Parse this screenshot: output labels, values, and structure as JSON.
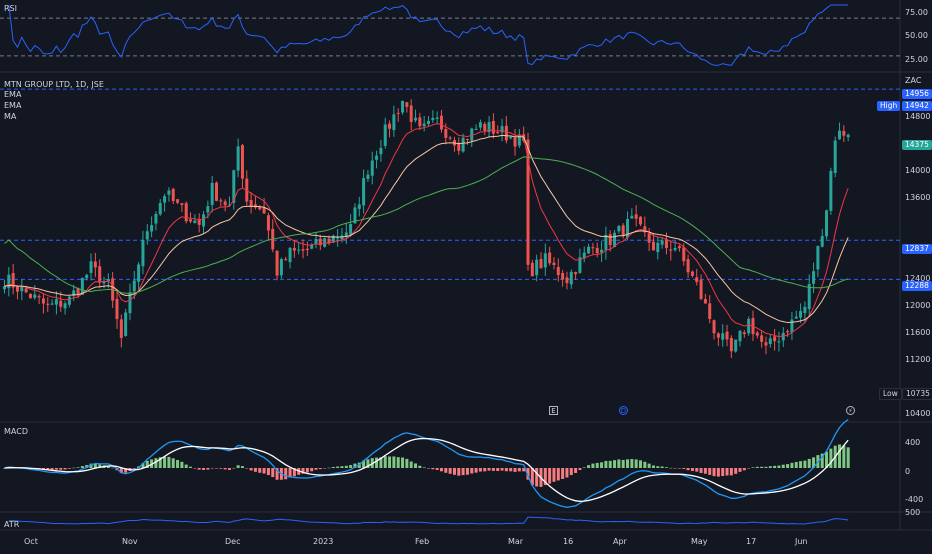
{
  "symbol": {
    "title": "MTN GROUP LTD, 1D, JSE",
    "currency": "ZAC"
  },
  "indicators": {
    "rsi": "RSI",
    "ema1": "EMA",
    "ema2": "EMA",
    "ma": "MA",
    "macd": "MACD",
    "atr": "ATR"
  },
  "rsi_scale": [
    "75.00",
    "50.00",
    "25.00"
  ],
  "price_scale": [
    "14800",
    "14000",
    "13600",
    "12400",
    "12000",
    "11600",
    "11200",
    "10400"
  ],
  "macd_scale": [
    "400",
    "0",
    "-400"
  ],
  "atr_scale": [
    "500"
  ],
  "price_tags": {
    "top": "14956",
    "high_label": "High",
    "high": "14942",
    "last": "14375",
    "level1": "12837",
    "level2": "12288",
    "low_label": "Low",
    "low": "10735"
  },
  "markers": {
    "earnings": "E",
    "dividend": "D",
    "split": "⚡"
  },
  "time_axis": [
    "Oct",
    "Nov",
    "Dec",
    "2023",
    "Feb",
    "Mar",
    "16",
    "Apr",
    "May",
    "17",
    "Jun"
  ],
  "colors": {
    "up": "#26a69a",
    "down": "#ef5350",
    "ema_fast": "#f23645",
    "ema_slow": "#f7c59f",
    "ma": "#4caf50",
    "rsi": "#2962ff",
    "macd_line": "#2196f3",
    "signal": "#ffffff",
    "atr": "#2962ff",
    "level": "#2962ff"
  },
  "chart_data": {
    "type": "candlestick",
    "price_axis_range": [
      10400,
      15000
    ],
    "key_prices": {
      "high": 14942,
      "low": 10735,
      "last": 14375,
      "support_levels": [
        12837,
        12288
      ],
      "upper_level": 14956
    },
    "rsi_range": [
      15,
      85
    ],
    "macd_range": [
      -550,
      550
    ]
  }
}
